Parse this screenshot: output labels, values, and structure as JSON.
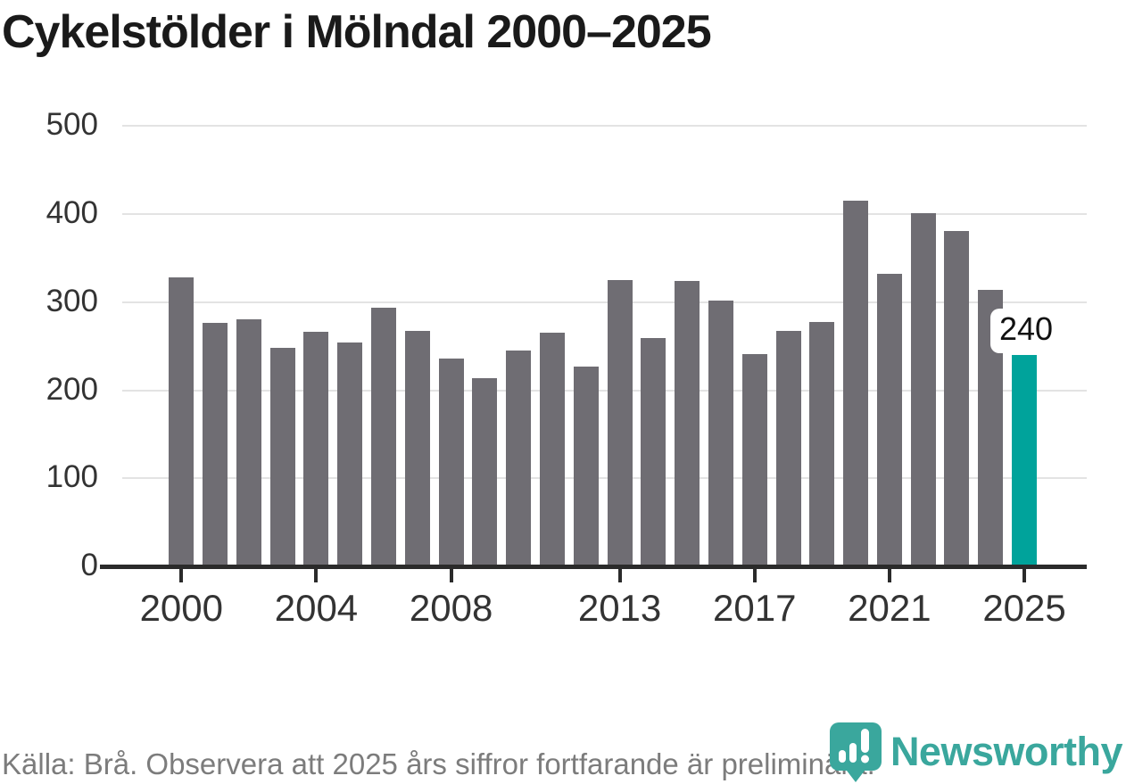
{
  "title": "Cykelstölder i Mölndal 2000–2025",
  "footer": {
    "source_note": "Källa: Brå. Observera att 2025 års siffror fortfarande är preliminära."
  },
  "branding": {
    "wordmark": "Newsworthy",
    "logo_icon": "newsworthy-speech-bubble-chart-icon"
  },
  "colors": {
    "bar": "#6f6d73",
    "highlight": "#00a39b",
    "brand_teal": "#3aa79d",
    "gridline": "#e3e3e3",
    "axis": "#2b2b2b",
    "tick_label": "#333333",
    "title_text": "#1a1a1a",
    "footer_text": "#7c7c7c"
  },
  "annotation": {
    "label": "240"
  },
  "chart_data": {
    "type": "bar",
    "title": "Cykelstölder i Mölndal 2000–2025",
    "x": [
      2000,
      2001,
      2002,
      2003,
      2004,
      2005,
      2006,
      2007,
      2008,
      2009,
      2010,
      2011,
      2012,
      2013,
      2014,
      2015,
      2016,
      2017,
      2018,
      2019,
      2020,
      2021,
      2022,
      2023,
      2024,
      2025
    ],
    "values": [
      328,
      276,
      281,
      248,
      266,
      254,
      294,
      267,
      236,
      214,
      245,
      265,
      227,
      325,
      259,
      324,
      302,
      241,
      267,
      277,
      415,
      332,
      401,
      381,
      314,
      240
    ],
    "highlight_year": 2025,
    "highlight_value": 240,
    "xlabel": "",
    "ylabel": "",
    "ylim": [
      0,
      500
    ],
    "ytick_labels": [
      "0",
      "100",
      "200",
      "300",
      "400",
      "500"
    ],
    "yticks": [
      0,
      100,
      200,
      300,
      400,
      500
    ],
    "xticks": [
      2000,
      2004,
      2008,
      2013,
      2017,
      2021,
      2025
    ],
    "grid": "horizontal",
    "legend": "none"
  }
}
